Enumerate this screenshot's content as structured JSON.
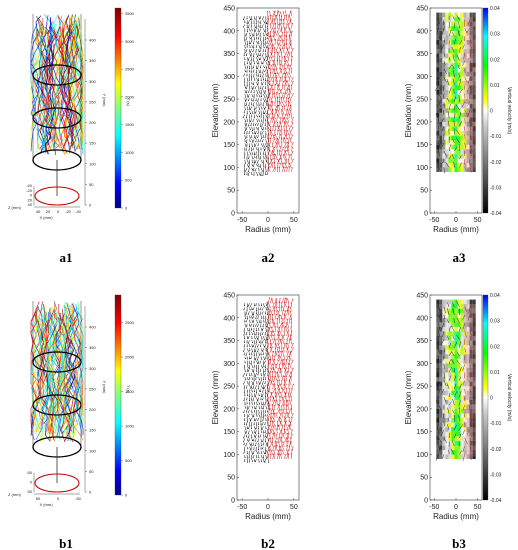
{
  "figure": {
    "labels": {
      "a1": "a1",
      "a2": "a2",
      "a3": "a3",
      "b1": "b1",
      "b2": "b2",
      "b3": "b3"
    }
  },
  "colors": {
    "ring_black": "#000000",
    "ring_red": "#cc0000",
    "vector_red": "#d61c1c",
    "vector_black": "#111111",
    "background_gray": "#d9d9d9"
  },
  "chart_data": [
    {
      "id": "a1",
      "type": "scatter",
      "title": "",
      "xlabel": "X (mm)",
      "ylabel": "Y (mm)",
      "zlabel": "Z (mm)",
      "y_ticks": [
        "0",
        "50",
        "100",
        "150",
        "200",
        "250",
        "300",
        "350",
        "400"
      ],
      "x_ticks": [
        "40",
        "20",
        "0",
        "-20",
        "-40"
      ],
      "z_ticks": [
        "-40",
        "-20",
        "0",
        "20",
        "40"
      ],
      "colorbar": {
        "label": "T (s)",
        "ticks": [
          "0",
          "500",
          "1000",
          "1500",
          "2000",
          "2500",
          "3000",
          "3500"
        ],
        "range": [
          0,
          3600
        ]
      },
      "rings_y": [
        50,
        150,
        250,
        350
      ],
      "red_ring_y": 50
    },
    {
      "id": "a2",
      "type": "scatter",
      "title": "",
      "xlabel": "Radius (mm)",
      "ylabel": "Elevation (mm)",
      "xlim": [
        -60,
        60
      ],
      "ylim": [
        0,
        450
      ],
      "x_ticks": [
        "-50",
        "0",
        "50"
      ],
      "y_ticks": [
        "0",
        "50",
        "100",
        "150",
        "200",
        "250",
        "300",
        "350",
        "400",
        "450"
      ],
      "series": [
        {
          "name": "",
          "x_range": [
            -45,
            0
          ],
          "y_range": [
            90,
            440
          ],
          "color": "#111111"
        },
        {
          "name": "",
          "x_range": [
            0,
            45
          ],
          "y_range": [
            90,
            440
          ],
          "color": "#d61c1c"
        }
      ]
    },
    {
      "id": "a3",
      "type": "heatmap",
      "title": "",
      "xlabel": "Radius (mm)",
      "ylabel": "Elevation (mm)",
      "xlim": [
        -60,
        60
      ],
      "ylim": [
        0,
        450
      ],
      "x_ticks": [
        "-50",
        "0",
        "50"
      ],
      "y_ticks": [
        "0",
        "50",
        "100",
        "150",
        "200",
        "250",
        "300",
        "350",
        "400",
        "450"
      ],
      "colorbar": {
        "label": "Vertical velocity (m/s)",
        "ticks": [
          "-0.04",
          "-0.03",
          "-0.02",
          "-0.01",
          "0",
          "0.01",
          "0.02",
          "0.03",
          "0.04"
        ],
        "range": [
          -0.04,
          0.04
        ]
      }
    },
    {
      "id": "b1",
      "type": "scatter",
      "title": "",
      "xlabel": "X (mm)",
      "ylabel": "Y (mm)",
      "zlabel": "Z (mm)",
      "y_ticks": [
        "0",
        "50",
        "100",
        "150",
        "200",
        "250",
        "300",
        "350",
        "400"
      ],
      "x_ticks": [
        "50",
        "0",
        "-50"
      ],
      "z_ticks": [
        "-50",
        "0",
        "50"
      ],
      "colorbar": {
        "label": "T (s)",
        "ticks": [
          "0",
          "500",
          "1000",
          "1500",
          "2000",
          "2500"
        ],
        "range": [
          0,
          2900
        ]
      },
      "rings_y": [
        50,
        150,
        250,
        350
      ],
      "red_ring_y": 50
    },
    {
      "id": "b2",
      "type": "scatter",
      "title": "",
      "xlabel": "Radius (mm)",
      "ylabel": "Elevation (mm)",
      "xlim": [
        -60,
        60
      ],
      "ylim": [
        0,
        450
      ],
      "x_ticks": [
        "-50",
        "0",
        "50"
      ],
      "y_ticks": [
        "0",
        "50",
        "100",
        "150",
        "200",
        "250",
        "300",
        "350",
        "400",
        "450"
      ],
      "series": [
        {
          "name": "",
          "x_range": [
            -45,
            0
          ],
          "y_range": [
            90,
            440
          ],
          "color": "#111111"
        },
        {
          "name": "",
          "x_range": [
            0,
            45
          ],
          "y_range": [
            90,
            440
          ],
          "color": "#d61c1c"
        }
      ]
    },
    {
      "id": "b3",
      "type": "heatmap",
      "title": "",
      "xlabel": "Radius (mm)",
      "ylabel": "Elevation (mm)",
      "xlim": [
        -60,
        60
      ],
      "ylim": [
        0,
        450
      ],
      "x_ticks": [
        "-50",
        "0",
        "50"
      ],
      "y_ticks": [
        "0",
        "50",
        "100",
        "150",
        "200",
        "250",
        "300",
        "350",
        "400",
        "450"
      ],
      "colorbar": {
        "label": "Vertical velocity (m/s)",
        "ticks": [
          "-0.04",
          "-0.03",
          "-0.02",
          "-0.01",
          "0",
          "0.01",
          "0.02",
          "0.03",
          "0.04"
        ],
        "range": [
          -0.04,
          0.04
        ]
      }
    }
  ]
}
